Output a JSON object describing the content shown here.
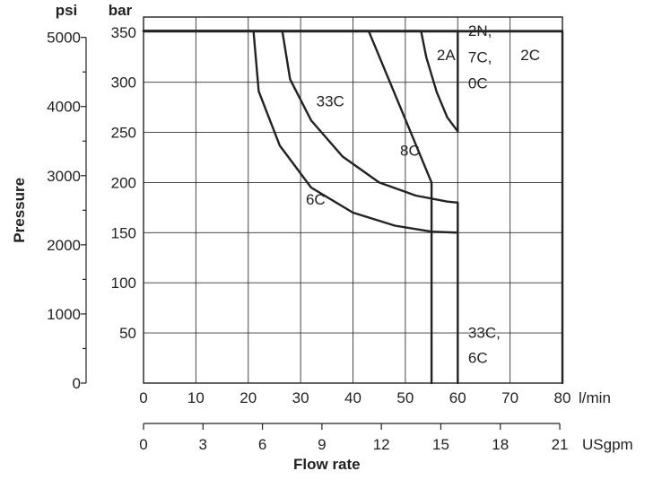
{
  "chart_data": {
    "type": "line",
    "ylabel": "Pressure",
    "xlabel": "Flow rate",
    "x_unit": "l/min",
    "x2_unit": "USgpm",
    "y_unit": "bar",
    "y2_unit": "psi",
    "xlim": [
      0,
      80
    ],
    "ylim": [
      0,
      365
    ],
    "grid": true,
    "x_ticks": [
      0,
      10,
      20,
      30,
      40,
      50,
      60,
      70,
      80
    ],
    "y_ticks": [
      50,
      100,
      150,
      200,
      250,
      300,
      350
    ],
    "x2_ticks": [
      0,
      3,
      6,
      9,
      12,
      15,
      18,
      21
    ],
    "y2_ticks": [
      0,
      1000,
      2000,
      3000,
      4000,
      5000
    ],
    "series": [
      {
        "name": "2A",
        "x": [
          0,
          53,
          54,
          56,
          58,
          60
        ],
        "y": [
          351,
          351,
          325,
          290,
          265,
          251
        ]
      },
      {
        "name": "2N, 7C, 0C",
        "x": [
          0,
          60,
          60
        ],
        "y": [
          351,
          351,
          251
        ]
      },
      {
        "name": "2C",
        "x": [
          0,
          80,
          80
        ],
        "y": [
          351,
          351,
          0
        ]
      },
      {
        "name": "8C",
        "x": [
          0,
          43,
          55,
          55
        ],
        "y": [
          351,
          351,
          200,
          0
        ]
      },
      {
        "name": "33C",
        "x": [
          0,
          26.5,
          28,
          32,
          38,
          45,
          52,
          58,
          60
        ],
        "y": [
          351,
          351,
          303,
          262,
          226,
          200,
          187,
          181,
          180
        ]
      },
      {
        "name": "6C",
        "x": [
          0,
          21,
          22,
          26,
          32,
          40,
          48,
          55,
          60
        ],
        "y": [
          351,
          351,
          291,
          237,
          195,
          170,
          157,
          151,
          150
        ]
      },
      {
        "name": "33C, 6C",
        "x": [
          60,
          60
        ],
        "y": [
          180,
          0
        ]
      }
    ],
    "labels": [
      {
        "text": "2A",
        "x": 56,
        "y": 322
      },
      {
        "text": "2N,",
        "x": 62,
        "y": 346
      },
      {
        "text": "7C,",
        "x": 62,
        "y": 320
      },
      {
        "text": "0C",
        "x": 62,
        "y": 294
      },
      {
        "text": "2C",
        "x": 72,
        "y": 322
      },
      {
        "text": "33C",
        "x": 33,
        "y": 276
      },
      {
        "text": "8C",
        "x": 49,
        "y": 227
      },
      {
        "text": "6C",
        "x": 31,
        "y": 178
      },
      {
        "text": "33C,",
        "x": 62,
        "y": 45
      },
      {
        "text": "6C",
        "x": 62,
        "y": 20
      }
    ]
  }
}
